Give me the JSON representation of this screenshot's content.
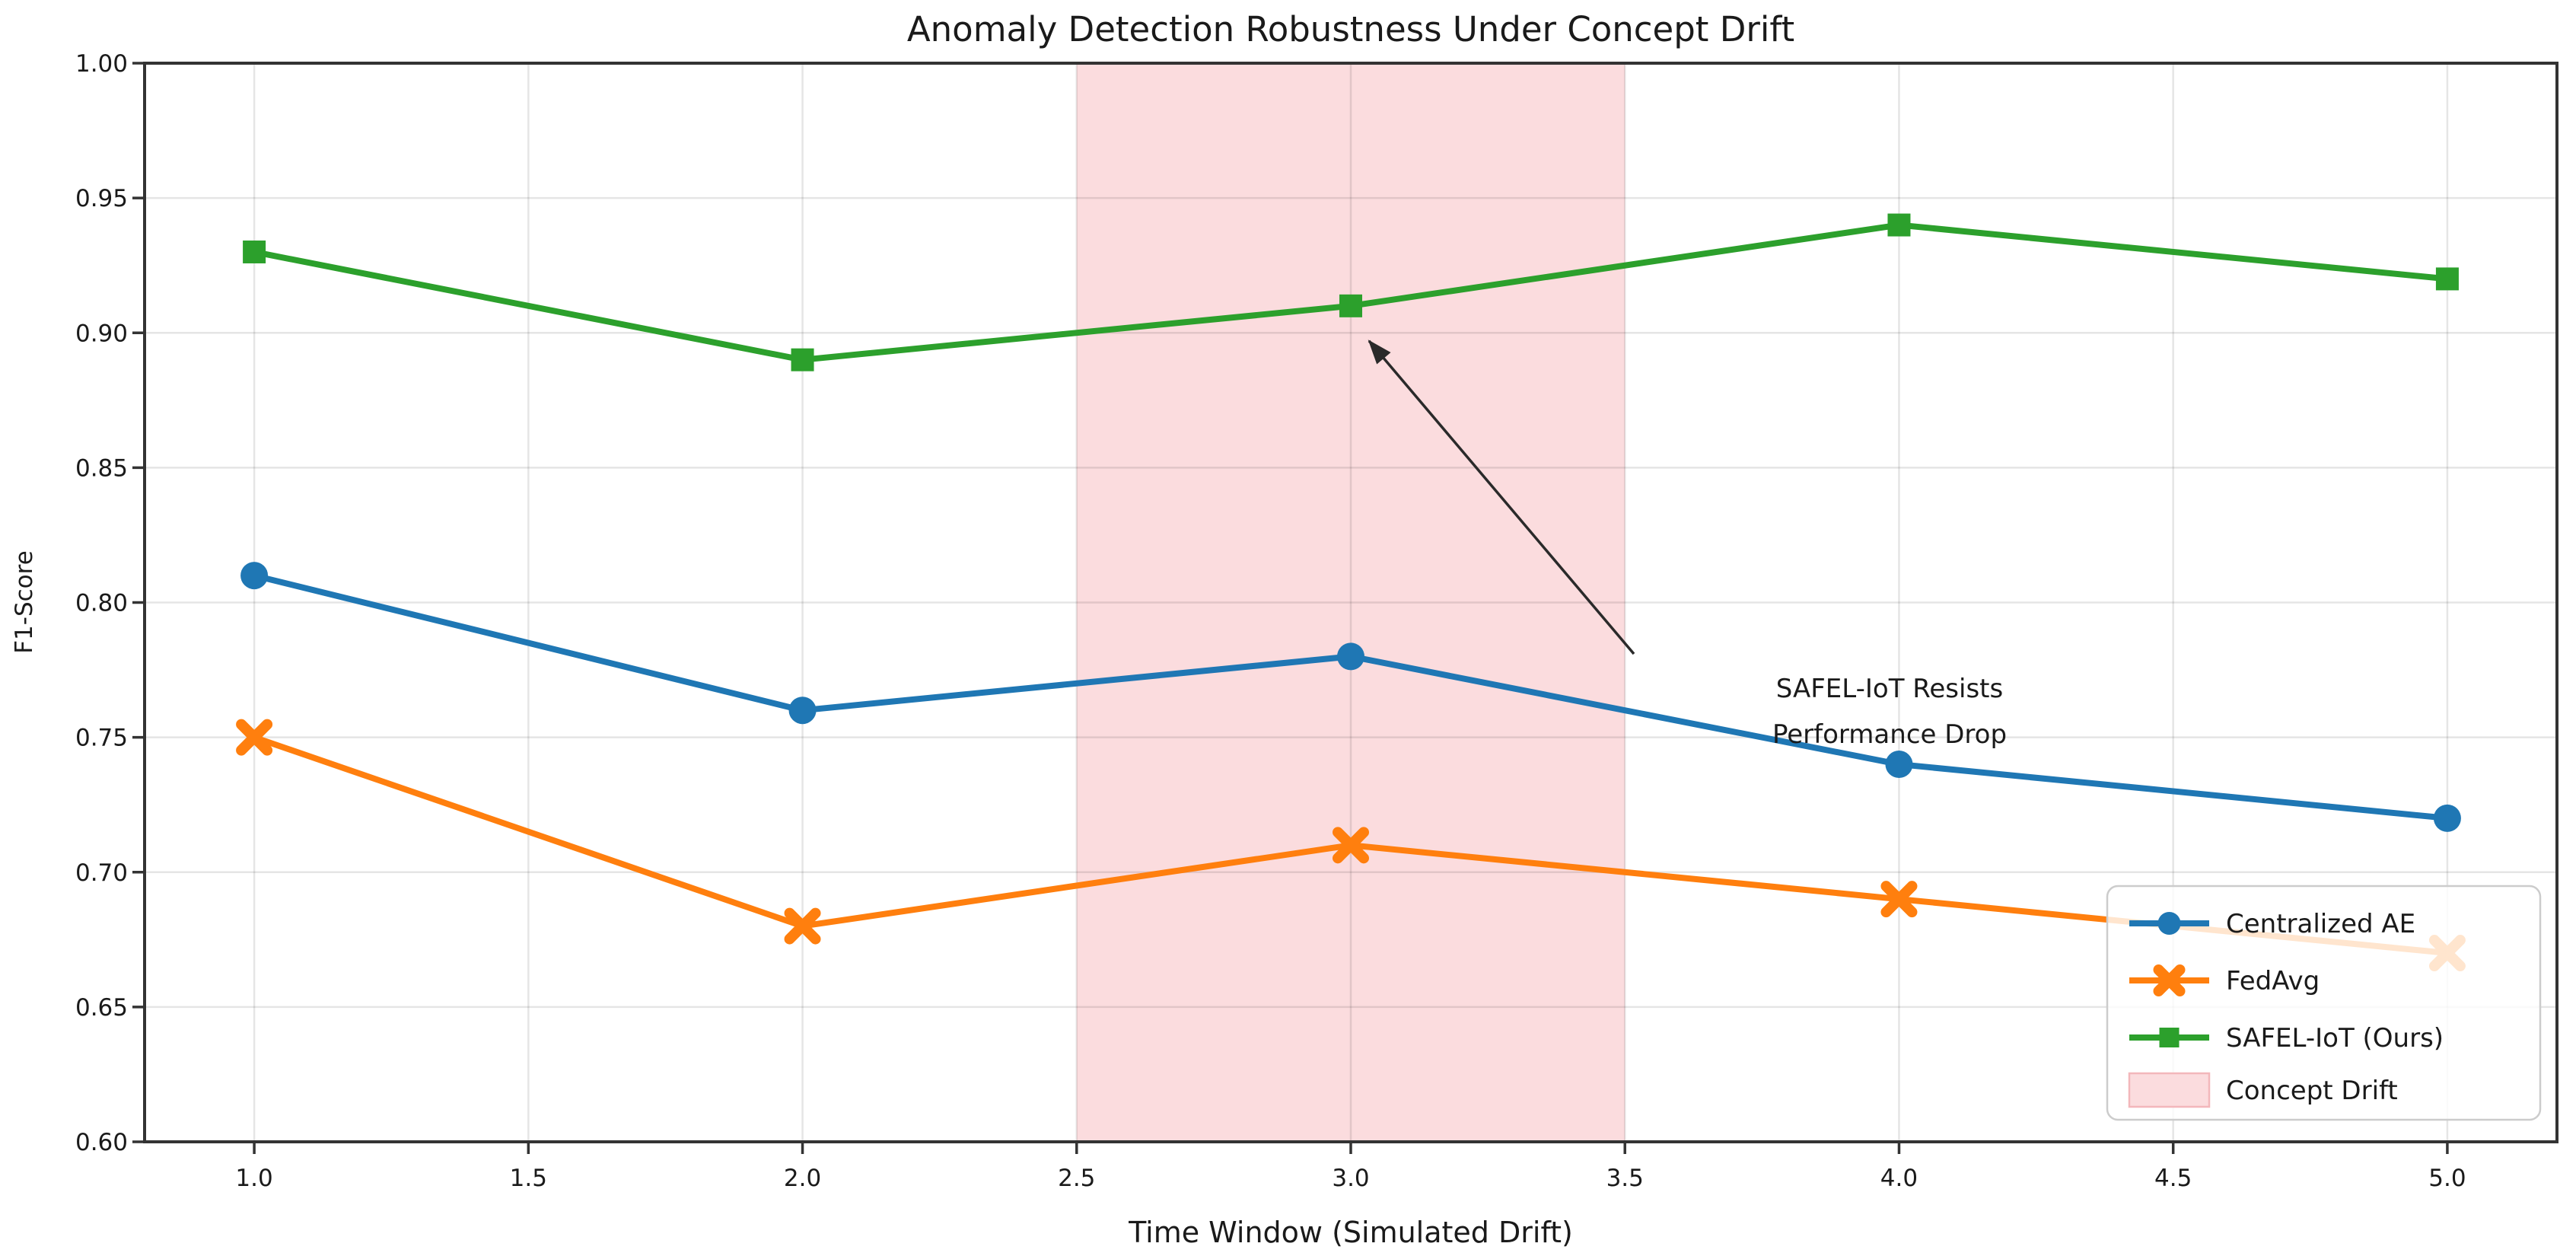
{
  "figure": {
    "background": "#ffffff"
  },
  "chart_data": {
    "type": "line",
    "title": "Anomaly Detection Robustness Under Concept Drift",
    "xlabel": "Time Window (Simulated Drift)",
    "ylabel": "F1-Score",
    "x": [
      1.0,
      2.0,
      3.0,
      4.0,
      5.0
    ],
    "xlim": [
      0.8,
      5.2
    ],
    "ylim": [
      0.6,
      1.0
    ],
    "grid": true,
    "xticks": {
      "values": [
        1.0,
        1.5,
        2.0,
        2.5,
        3.0,
        3.5,
        4.0,
        4.5,
        5.0
      ],
      "labels": [
        "1.0",
        "1.5",
        "2.0",
        "2.5",
        "3.0",
        "3.5",
        "4.0",
        "4.5",
        "5.0"
      ]
    },
    "yticks": {
      "values": [
        0.6,
        0.65,
        0.7,
        0.75,
        0.8,
        0.85,
        0.9,
        0.95,
        1.0
      ],
      "labels": [
        "0.60",
        "0.65",
        "0.70",
        "0.75",
        "0.80",
        "0.85",
        "0.90",
        "0.95",
        "1.00"
      ]
    },
    "series": [
      {
        "name": "Centralized AE",
        "color": "#1f77b4",
        "marker": "circle",
        "values": [
          0.81,
          0.76,
          0.78,
          0.74,
          0.72
        ]
      },
      {
        "name": "FedAvg",
        "color": "#ff7f0e",
        "marker": "x",
        "values": [
          0.75,
          0.68,
          0.71,
          0.69,
          0.67
        ]
      },
      {
        "name": "SAFEL-IoT (Ours)",
        "color": "#2ca02c",
        "marker": "square",
        "values": [
          0.93,
          0.89,
          0.91,
          0.94,
          0.92
        ]
      }
    ],
    "drift_band": {
      "label": "Concept Drift",
      "from_x": 2.5,
      "to_x": 3.5,
      "fill": "#fbdcde",
      "legend_edge": "#f3b7bb"
    },
    "annotation": {
      "line1": "SAFEL-IoT Resists",
      "line2": "Performance Drop",
      "arrow_points_to": {
        "x": 3.0,
        "y": 0.91
      },
      "arrow_color": "#2a2a2a"
    },
    "legend": {
      "position": "lower right",
      "entries": [
        "Centralized AE",
        "FedAvg",
        "SAFEL-IoT (Ours)",
        "Concept Drift"
      ]
    }
  },
  "style": {
    "text_color": "#1a1a1a",
    "axis_color": "#333333",
    "grid_color": "rgba(0,0,0,0.10)",
    "legend_bg": "rgba(255,255,255,0.8)",
    "legend_border": "#cccccc"
  }
}
